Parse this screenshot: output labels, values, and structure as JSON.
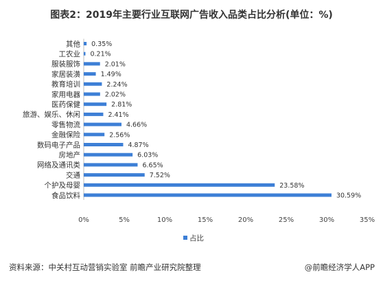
{
  "title": "图表2：2019年主要行业互联网广告收入品类占比分析(单位：%)",
  "footer": {
    "source": "资料来源：中关村互动营销实验室 前瞻产业研究院整理",
    "brand": "@前瞻经济学人APP"
  },
  "chart_data": {
    "type": "bar",
    "orientation": "horizontal",
    "categories": [
      "其他",
      "工农业",
      "服装服饰",
      "家居装潢",
      "教育培训",
      "家用电器",
      "医药保健",
      "旅游、娱乐、休闲",
      "零售物流",
      "金融保险",
      "数码电子产品",
      "房地产",
      "网络及通讯类",
      "交通",
      "个护及母婴",
      "食品饮料"
    ],
    "series": [
      {
        "name": "占比",
        "values": [
          0.35,
          0.21,
          2.01,
          1.49,
          2.24,
          2.02,
          2.81,
          2.41,
          4.66,
          2.56,
          4.87,
          6.03,
          6.65,
          7.52,
          23.58,
          30.59
        ],
        "labels": [
          "0.35%",
          "0.21%",
          "2.01%",
          "1.49%",
          "2.24%",
          "2.02%",
          "2.81%",
          "2.41%",
          "4.66%",
          "2.56%",
          "4.87%",
          "6.03%",
          "6.65%",
          "7.52%",
          "23.58%",
          "30.59%"
        ]
      }
    ],
    "xlim": [
      0,
      35
    ],
    "xticks": [
      0,
      5,
      10,
      15,
      20,
      25,
      30,
      35
    ],
    "xtick_labels": [
      "0%",
      "5%",
      "10%",
      "15%",
      "20%",
      "25%",
      "30%",
      "35%"
    ],
    "grid": false,
    "legend": "bottom-center",
    "bar_color": "#3D7FD6"
  }
}
